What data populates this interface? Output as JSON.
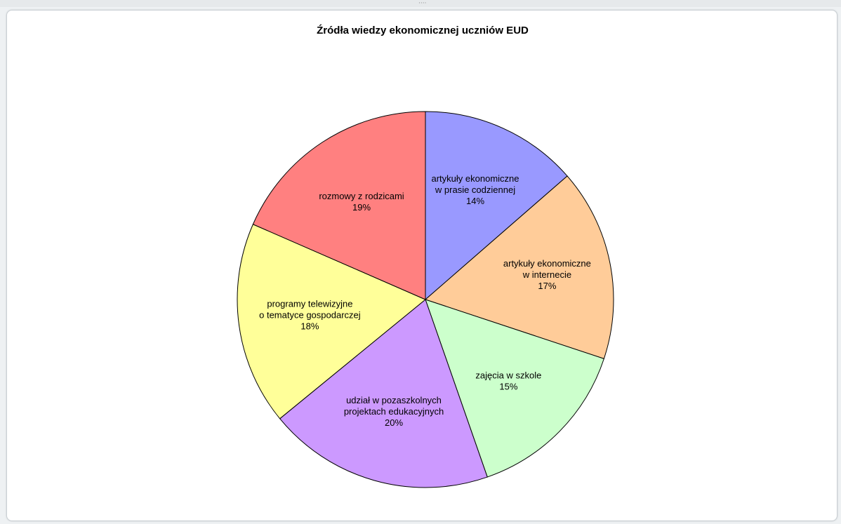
{
  "window": {
    "grip_icon": "resize-grip-icon"
  },
  "chart_data": {
    "type": "pie",
    "title": "Źródła wiedzy ekonomicznej  uczniów EUD",
    "start_angle_deg": 0,
    "direction": "clockwise",
    "slices": [
      {
        "label_lines": [
          "artykuły ekonomiczne",
          "w prasie codziennej"
        ],
        "value": 14,
        "pct_label": "14%",
        "color": "#9999ff"
      },
      {
        "label_lines": [
          "artykuły ekonomiczne",
          "w internecie"
        ],
        "value": 17,
        "pct_label": "17%",
        "color": "#ffcc99"
      },
      {
        "label_lines": [
          "zajęcia w szkole"
        ],
        "value": 15,
        "pct_label": "15%",
        "color": "#ccffcc"
      },
      {
        "label_lines": [
          "udział w pozaszkolnych",
          "projektach edukacyjnych"
        ],
        "value": 20,
        "pct_label": "20%",
        "color": "#cc99ff"
      },
      {
        "label_lines": [
          "programy telewizyjne",
          "o tematyce gospodarczej"
        ],
        "value": 18,
        "pct_label": "18%",
        "color": "#ffff99"
      },
      {
        "label_lines": [
          "rozmowy z rodzicami"
        ],
        "value": 19,
        "pct_label": "19%",
        "color": "#ff8080"
      }
    ]
  }
}
